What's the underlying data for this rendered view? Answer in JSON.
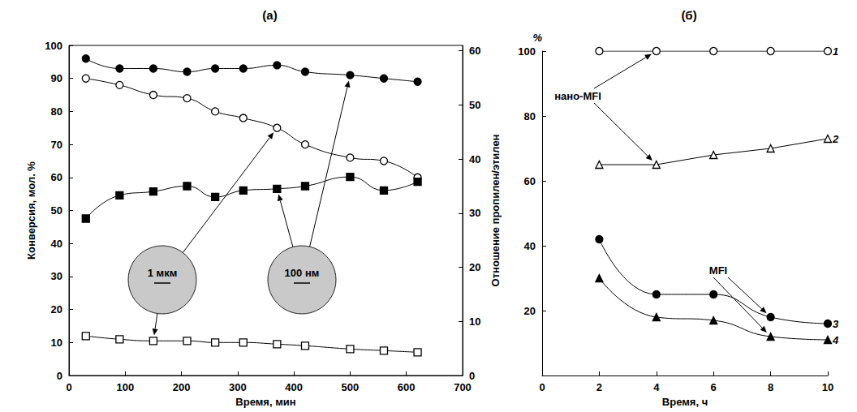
{
  "chart_data": [
    {
      "type": "line",
      "title": "(а)",
      "x_label": "Время, мин",
      "y_label": "Конверсия, мол. %",
      "y2_label": "Отношение пропилен/этилен",
      "x": [
        30,
        90,
        150,
        210,
        260,
        310,
        370,
        420,
        500,
        560,
        620
      ],
      "xlim": [
        0,
        700
      ],
      "xticks": [
        0,
        100,
        200,
        300,
        400,
        500,
        600,
        700
      ],
      "ylim": [
        0,
        100
      ],
      "yticks": [
        0,
        10,
        20,
        30,
        40,
        50,
        60,
        70,
        80,
        90,
        100
      ],
      "y2lim": [
        0,
        61
      ],
      "y2ticks": [
        0,
        10,
        20,
        30,
        40,
        50,
        60
      ],
      "grid": false,
      "annotations": [
        "1 мкм",
        "100 нм"
      ],
      "series": [
        {
          "color": "#000000",
          "marker": "filled_circle",
          "line_style": "smooth",
          "values": [
            96,
            93,
            93,
            92,
            93,
            93,
            94,
            92,
            91,
            90,
            89
          ]
        },
        {
          "color": "#000000",
          "marker": "open_circle",
          "line_style": "smooth",
          "values": [
            90,
            88,
            85,
            84,
            80,
            78,
            75,
            70,
            66,
            65,
            60
          ]
        },
        {
          "color": "#000000",
          "marker": "filled_square",
          "line_style": "smooth",
          "axis": "y2",
          "values": [
            29,
            33.3,
            34,
            35,
            33,
            34.2,
            34.5,
            35,
            36.7,
            34.2,
            35.8
          ]
        },
        {
          "color": "#000000",
          "marker": "open_square",
          "line_style": "smooth",
          "axis": "y2",
          "values": [
            7.3,
            6.7,
            6.4,
            6.4,
            6.1,
            6.1,
            5.8,
            5.5,
            4.9,
            4.6,
            4.3
          ]
        }
      ]
    },
    {
      "type": "line",
      "title": "(б)",
      "x_label": "Время, ч",
      "y_label": "%",
      "x": [
        2,
        4,
        6,
        8,
        10
      ],
      "xlim": [
        0,
        10
      ],
      "xticks": [
        0,
        2,
        4,
        6,
        8,
        10
      ],
      "ylim": [
        0,
        100
      ],
      "yticks": [
        20,
        40,
        60,
        80,
        100
      ],
      "grid": false,
      "annotations": [
        "нано-MFI",
        "MFI"
      ],
      "series": [
        {
          "name": "1",
          "color": "#000000",
          "marker": "open_circle",
          "line_style": "solid",
          "values": [
            100,
            100,
            100,
            100,
            100
          ]
        },
        {
          "name": "2",
          "color": "#000000",
          "marker": "open_triangle",
          "line_style": "solid",
          "values": [
            65,
            65,
            68,
            70,
            73
          ]
        },
        {
          "name": "3",
          "color": "#000000",
          "marker": "filled_circle",
          "line_style": "smooth",
          "values": [
            42,
            25,
            25,
            18,
            16
          ]
        },
        {
          "name": "4",
          "color": "#000000",
          "marker": "filled_triangle",
          "line_style": "smooth",
          "values": [
            30,
            18,
            17,
            12,
            11
          ]
        }
      ]
    }
  ]
}
